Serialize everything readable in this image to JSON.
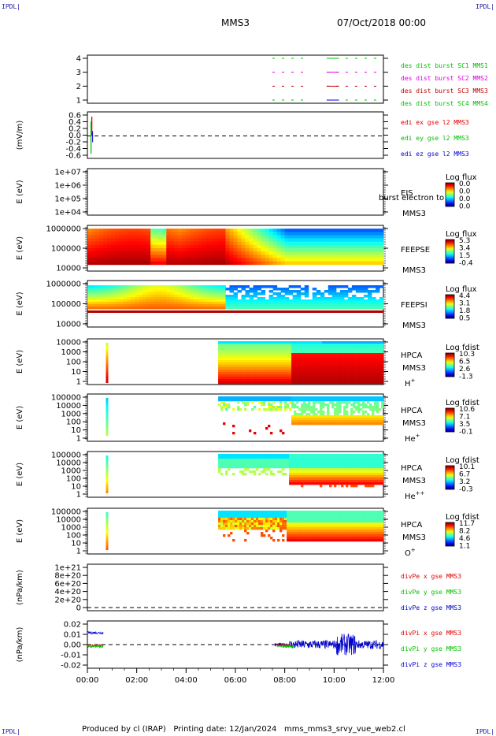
{
  "corners": {
    "tl": "IPDL|",
    "tr": "IPDL|",
    "bl": "IPDL|",
    "br": "IPDL|"
  },
  "header": {
    "spacecraft": "MMS3",
    "date": "07/Oct/2018 00:00"
  },
  "footer": {
    "produced_by": "Produced by cl (IRAP)",
    "printing_date": "Printing date: 12/Jan/2024",
    "script": "mms_mms3_srvy_vue_web2.cl"
  },
  "colors": {
    "red": "#e00000",
    "green": "#00c000",
    "blue": "#0000d0",
    "magenta": "#e000e0",
    "dark_red": "#c00000"
  },
  "chart_data": [
    {
      "type": "line",
      "id": "dist",
      "yticks": [
        "4",
        "3",
        "2",
        "1"
      ],
      "ylim": [
        0.5,
        4.5
      ],
      "series": [
        {
          "name": "des dist burst SC1 MMS1",
          "color": "green",
          "level": 4,
          "x": [
            7.5,
            8.9,
            9.7,
            12.0
          ]
        },
        {
          "name": "des dist burst SC2 MMS2",
          "color": "magenta",
          "level": 3,
          "x": [
            7.5,
            8.9,
            9.7,
            12.0
          ]
        },
        {
          "name": "des dist burst SC3 MMS3",
          "color": "dark_red",
          "level": 2,
          "x": [
            7.5,
            8.9,
            9.7,
            12.0
          ]
        },
        {
          "name": "des dist burst SC4 MMS4",
          "color": "green",
          "level": 1,
          "x": [
            7.5,
            8.9,
            9.7,
            12.0
          ]
        }
      ]
    },
    {
      "type": "line",
      "id": "edi",
      "ylabel": "(mV/m)",
      "ylim": [
        -0.7,
        0.7
      ],
      "yticks": [
        "0.6",
        "0.4",
        "0.2",
        "0.0",
        "-0.2",
        "-0.4",
        "-0.6"
      ],
      "series": [
        {
          "name": "edi ex gse l2 MMS3",
          "color": "red"
        },
        {
          "name": "edi ey gse l2 MMS3",
          "color": "green"
        },
        {
          "name": "edi ez gse l2 MMS3",
          "color": "blue"
        }
      ]
    },
    {
      "type": "heatmap",
      "id": "eis",
      "ylabel": "E (eV)",
      "yticks": [
        "1e+07",
        "1e+06",
        "1e+05",
        "1e+04"
      ],
      "instrument": "EIS",
      "sc": "MMS3",
      "note": "burst electron to",
      "cbar_title": "Log flux",
      "cbar_ticks": [
        "0.0",
        "0.0",
        "0.0",
        "0.0"
      ]
    },
    {
      "type": "heatmap",
      "id": "feepse",
      "ylabel": "E (eV)",
      "yticks": [
        "1000000",
        "100000",
        "10000"
      ],
      "instrument": "FEEPSE",
      "sc": "MMS3",
      "cbar_title": "Log flux",
      "cbar_ticks": [
        "5.3",
        "3.4",
        "1.5",
        "-0.4"
      ]
    },
    {
      "type": "heatmap",
      "id": "feepsi",
      "ylabel": "E (eV)",
      "yticks": [
        "1000000",
        "100000",
        "10000"
      ],
      "instrument": "FEEPSI",
      "sc": "MMS3",
      "cbar_title": "Log flux",
      "cbar_ticks": [
        "4.4",
        "3.1",
        "1.8",
        "0.5"
      ]
    },
    {
      "type": "heatmap",
      "id": "hpca_h",
      "ylabel": "E (eV)",
      "yticks": [
        "10000",
        "1000",
        "100",
        "10",
        "1"
      ],
      "instrument": "HPCA",
      "sc": "MMS3",
      "species": "H",
      "charge": "+",
      "cbar_title": "Log fdist",
      "cbar_ticks": [
        "10.3",
        "6.5",
        "2.6",
        "-1.3"
      ]
    },
    {
      "type": "heatmap",
      "id": "hpca_he1",
      "ylabel": "E (eV)",
      "yticks": [
        "100000",
        "10000",
        "1000",
        "100",
        "10",
        "1"
      ],
      "instrument": "HPCA",
      "sc": "MMS3",
      "species": "He",
      "charge": "+",
      "cbar_title": "Log fdist",
      "cbar_ticks": [
        "10.6",
        "7.1",
        "3.5",
        "-0.1"
      ]
    },
    {
      "type": "heatmap",
      "id": "hpca_he2",
      "ylabel": "E (eV)",
      "yticks": [
        "100000",
        "10000",
        "1000",
        "100",
        "10",
        "1"
      ],
      "instrument": "HPCA",
      "sc": "MMS3",
      "species": "He",
      "charge": "++",
      "cbar_title": "Log fdist",
      "cbar_ticks": [
        "10.1",
        "6.7",
        "3.2",
        "-0.3"
      ]
    },
    {
      "type": "heatmap",
      "id": "hpca_o",
      "ylabel": "E (eV)",
      "yticks": [
        "100000",
        "10000",
        "1000",
        "100",
        "10",
        "1"
      ],
      "instrument": "HPCA",
      "sc": "MMS3",
      "species": "O",
      "charge": "+",
      "cbar_title": "Log fdist",
      "cbar_ticks": [
        "11.7",
        "8.2",
        "4.6",
        "1.1"
      ]
    },
    {
      "type": "line",
      "id": "divpe",
      "ylabel": "(nPa/km)",
      "ylim": [
        -5e+19,
        1.1e+21
      ],
      "yticks": [
        "1e+21",
        "8e+20",
        "6e+20",
        "4e+20",
        "2e+20",
        "0"
      ],
      "series": [
        {
          "name": "divPe x gse MMS3",
          "color": "red"
        },
        {
          "name": "divPe y gse MMS3",
          "color": "green"
        },
        {
          "name": "divPe z gse MMS3",
          "color": "blue"
        }
      ]
    },
    {
      "type": "line",
      "id": "divpi",
      "ylabel": "(nPa/km)",
      "ylim": [
        -0.028,
        0.028
      ],
      "yticks": [
        "0.02",
        "0.01",
        "0.00",
        "-0.01",
        "-0.02"
      ],
      "series": [
        {
          "name": "divPi x gse MMS3",
          "color": "red"
        },
        {
          "name": "divPi y gse MMS3",
          "color": "green"
        },
        {
          "name": "divPi z gse MMS3",
          "color": "blue"
        }
      ]
    }
  ],
  "xaxis": {
    "range_hours": [
      0,
      12
    ],
    "ticks": [
      "00:00",
      "02:00",
      "04:00",
      "06:00",
      "08:00",
      "10:00",
      "12:00"
    ]
  }
}
